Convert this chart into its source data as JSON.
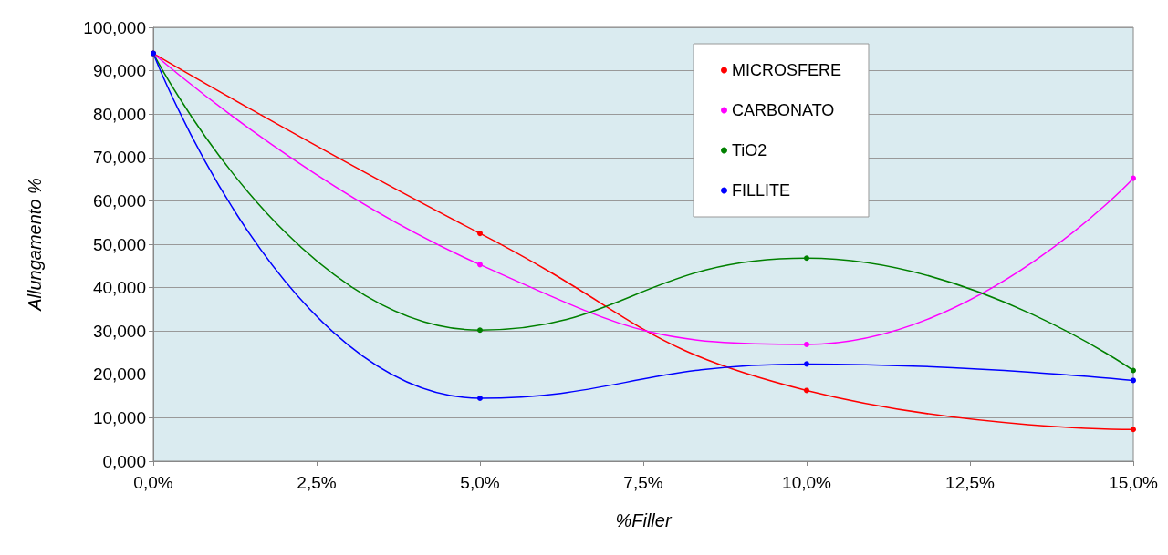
{
  "chart_data": {
    "type": "line",
    "xlabel": "%Filler",
    "ylabel": "Allungamento %",
    "x": [
      0,
      5,
      10,
      15
    ],
    "series": [
      {
        "name": "MICROSFERE",
        "color": "#ff0000",
        "values": [
          94,
          52.5,
          16.3,
          7.3
        ]
      },
      {
        "name": "CARBONATO",
        "color": "#ff00ff",
        "values": [
          94,
          45.3,
          26.9,
          65.2
        ]
      },
      {
        "name": "TiO2",
        "color": "#008000",
        "values": [
          94,
          30.2,
          46.8,
          20.9
        ]
      },
      {
        "name": "FILLITE",
        "color": "#0000ff",
        "values": [
          94,
          14.5,
          22.4,
          18.6
        ]
      }
    ],
    "xlim": [
      0,
      15
    ],
    "xticks": [
      {
        "value": 0,
        "label": "0,0%"
      },
      {
        "value": 2.5,
        "label": "2,5%"
      },
      {
        "value": 5,
        "label": "5,0%"
      },
      {
        "value": 7.5,
        "label": "7,5%"
      },
      {
        "value": 10,
        "label": "10,0%"
      },
      {
        "value": 12.5,
        "label": "12,5%"
      },
      {
        "value": 15,
        "label": "15,0%"
      }
    ],
    "ylim": [
      0,
      100
    ],
    "yticks": [
      {
        "value": 0,
        "label": "0,000"
      },
      {
        "value": 10,
        "label": "10,000"
      },
      {
        "value": 20,
        "label": "20,000"
      },
      {
        "value": 30,
        "label": "30,000"
      },
      {
        "value": 40,
        "label": "40,000"
      },
      {
        "value": 50,
        "label": "50,000"
      },
      {
        "value": 60,
        "label": "60,000"
      },
      {
        "value": 70,
        "label": "70,000"
      },
      {
        "value": 80,
        "label": "80,000"
      },
      {
        "value": 90,
        "label": "90,000"
      },
      {
        "value": 100,
        "label": "100,000"
      }
    ],
    "grid": "y",
    "legend": "top right",
    "marker": "circle",
    "line_style": "solid"
  }
}
